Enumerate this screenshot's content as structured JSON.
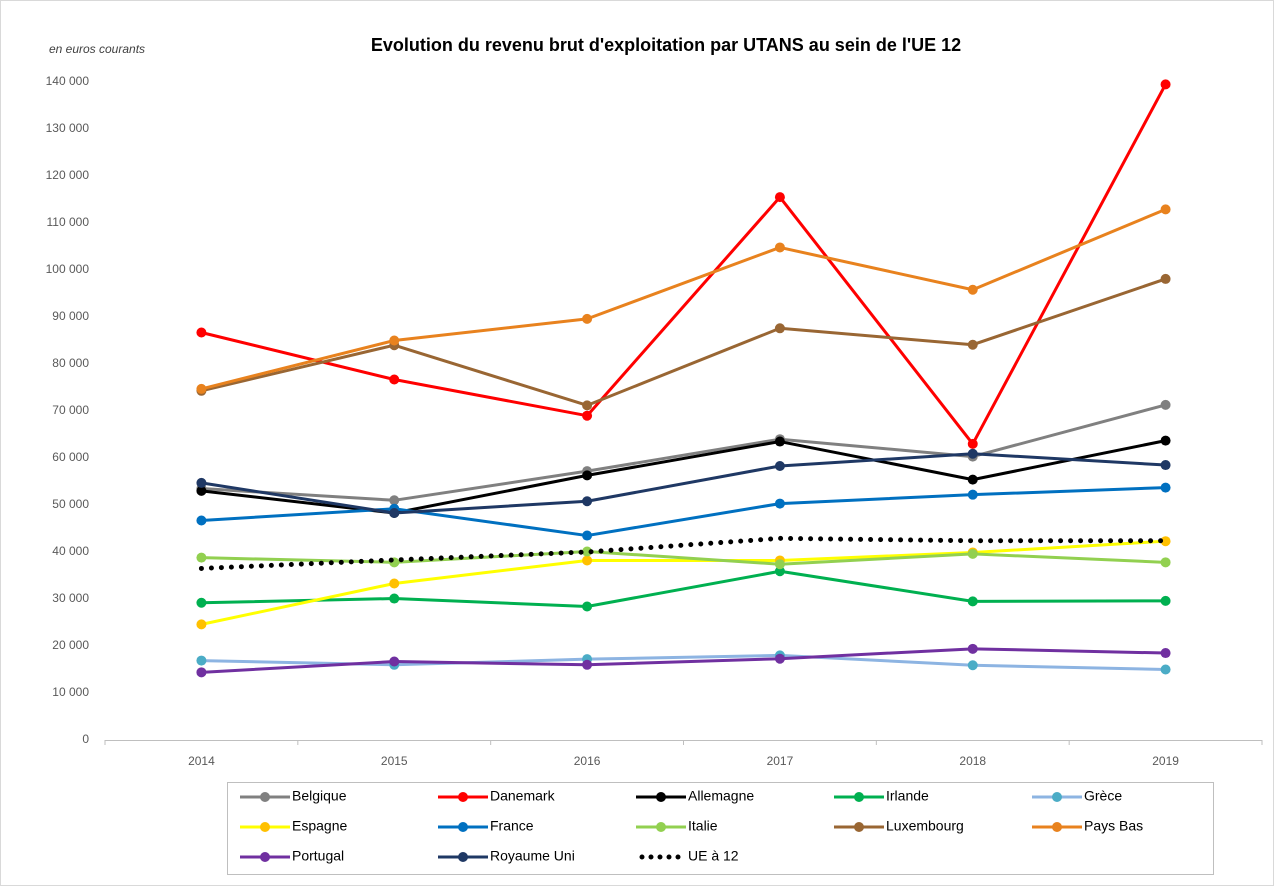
{
  "chart_data": {
    "type": "line",
    "title": "Evolution du revenu brut d'exploitation par UTANS au sein de l'UE 12",
    "subtitle": "en euros courants",
    "categories": [
      "2014",
      "2015",
      "2016",
      "2017",
      "2018",
      "2019"
    ],
    "ylim": [
      0,
      140000
    ],
    "yticks": [
      {
        "value": 0,
        "label": "0"
      },
      {
        "value": 10000,
        "label": "10 000"
      },
      {
        "value": 20000,
        "label": "20 000"
      },
      {
        "value": 30000,
        "label": "30 000"
      },
      {
        "value": 40000,
        "label": "40 000"
      },
      {
        "value": 50000,
        "label": "50 000"
      },
      {
        "value": 60000,
        "label": "60 000"
      },
      {
        "value": 70000,
        "label": "70 000"
      },
      {
        "value": 80000,
        "label": "80 000"
      },
      {
        "value": 90000,
        "label": "90 000"
      },
      {
        "value": 100000,
        "label": "100 000"
      },
      {
        "value": 110000,
        "label": "110 000"
      },
      {
        "value": 120000,
        "label": "120 000"
      },
      {
        "value": 130000,
        "label": "130 000"
      },
      {
        "value": 140000,
        "label": "140 000"
      }
    ],
    "grid": false,
    "legend": "bottom",
    "series": [
      {
        "name": "Belgique",
        "color": "#808080",
        "values": [
          53500,
          51000,
          57200,
          64000,
          60300,
          71300
        ]
      },
      {
        "name": "Danemark",
        "color": "#ff0000",
        "values": [
          86700,
          76700,
          69000,
          115500,
          63000,
          139500
        ]
      },
      {
        "name": "Allemagne",
        "color": "#000000",
        "values": [
          53000,
          48300,
          56300,
          63500,
          55400,
          63700
        ]
      },
      {
        "name": "Irlande",
        "color": "#00b050",
        "values": [
          29200,
          30100,
          28400,
          35900,
          29500,
          29600
        ]
      },
      {
        "name": "Grèce",
        "color": "#8db4e2",
        "marker_color": "#4bacc6",
        "values": [
          16900,
          16000,
          17200,
          18000,
          15900,
          15000
        ]
      },
      {
        "name": "Espagne",
        "color": "#ffff00",
        "marker_color": "#ffc000",
        "values": [
          24600,
          33300,
          38200,
          38200,
          39900,
          42300
        ]
      },
      {
        "name": "France",
        "color": "#0070c0",
        "values": [
          46700,
          49200,
          43500,
          50300,
          52200,
          53700
        ]
      },
      {
        "name": "Italie",
        "color": "#92d050",
        "values": [
          38800,
          37800,
          40100,
          37400,
          39600,
          37800
        ]
      },
      {
        "name": "Luxembourg",
        "color": "#996633",
        "values": [
          74300,
          84000,
          71200,
          87600,
          84100,
          98100
        ]
      },
      {
        "name": "Pays Bas",
        "color": "#e8821e",
        "values": [
          74700,
          85000,
          89600,
          104800,
          95800,
          112900
        ]
      },
      {
        "name": "Portugal",
        "color": "#7030a0",
        "values": [
          14400,
          16700,
          16000,
          17300,
          19400,
          18500
        ]
      },
      {
        "name": "Royaume Uni",
        "color": "#1f3864",
        "values": [
          54700,
          48300,
          50800,
          58300,
          60900,
          58500
        ]
      },
      {
        "name": "UE à 12",
        "color": "#000000",
        "dash": "dotted",
        "markers": false,
        "values": [
          36500,
          38300,
          40000,
          42900,
          42400,
          42400
        ]
      }
    ]
  }
}
